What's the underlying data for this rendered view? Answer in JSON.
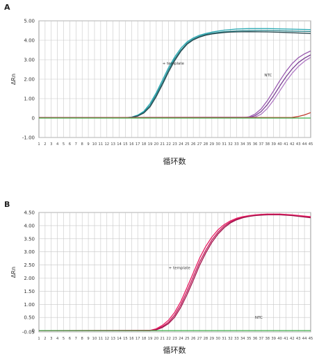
{
  "chart_data": [
    {
      "panel_label": "A",
      "type": "line",
      "ylabel": "ΔRn",
      "xlabel": "循环数",
      "ylim": [
        -1.0,
        5.0
      ],
      "yticks": [
        "5.00",
        "4.00",
        "3.00",
        "2.00",
        "1.00",
        "0",
        "-1.00"
      ],
      "ytick_values": [
        5,
        4,
        3,
        2,
        1,
        0,
        -1
      ],
      "xlim": [
        1,
        45
      ],
      "annotations": [
        {
          "text": "+ template",
          "x": 21,
          "y": 2.75
        },
        {
          "text": "NTC",
          "x": 37.5,
          "y": 2.15
        }
      ],
      "grid": true,
      "series": [
        {
          "color": "#2aa9b3",
          "x": [
            1,
            15,
            16,
            17,
            18,
            19,
            20,
            21,
            22,
            23,
            24,
            25,
            26,
            27,
            28,
            29,
            30,
            31,
            32,
            33,
            35,
            38,
            41,
            45
          ],
          "y": [
            0.02,
            0.02,
            0.05,
            0.15,
            0.35,
            0.75,
            1.3,
            1.95,
            2.6,
            3.15,
            3.6,
            3.92,
            4.12,
            4.26,
            4.35,
            4.42,
            4.47,
            4.52,
            4.55,
            4.58,
            4.6,
            4.6,
            4.58,
            4.55
          ]
        },
        {
          "color": "#1e7f86",
          "x": [
            1,
            15,
            16,
            17,
            18,
            19,
            20,
            21,
            22,
            23,
            24,
            25,
            26,
            27,
            28,
            29,
            30,
            31,
            32,
            33,
            35,
            38,
            41,
            45
          ],
          "y": [
            0.02,
            0.02,
            0.04,
            0.12,
            0.3,
            0.65,
            1.2,
            1.82,
            2.48,
            3.05,
            3.5,
            3.85,
            4.06,
            4.2,
            4.3,
            4.36,
            4.4,
            4.44,
            4.46,
            4.48,
            4.5,
            4.5,
            4.48,
            4.45
          ]
        },
        {
          "color": "#2b4a50",
          "x": [
            1,
            15,
            16,
            17,
            18,
            19,
            20,
            21,
            22,
            23,
            24,
            25,
            26,
            27,
            28,
            29,
            30,
            31,
            32,
            33,
            35,
            38,
            41,
            45
          ],
          "y": [
            0.02,
            0.02,
            0.04,
            0.1,
            0.26,
            0.58,
            1.1,
            1.72,
            2.38,
            2.96,
            3.44,
            3.8,
            4.02,
            4.16,
            4.26,
            4.32,
            4.36,
            4.4,
            4.42,
            4.43,
            4.44,
            4.43,
            4.4,
            4.35
          ]
        },
        {
          "color": "#9a5bb0",
          "x": [
            1,
            34,
            35,
            36,
            37,
            38,
            39,
            40,
            41,
            42,
            43,
            44,
            45
          ],
          "y": [
            0.02,
            0.02,
            0.06,
            0.2,
            0.48,
            0.9,
            1.4,
            1.92,
            2.4,
            2.8,
            3.1,
            3.3,
            3.45
          ]
        },
        {
          "color": "#7a3c94",
          "x": [
            1,
            35,
            36,
            37,
            38,
            39,
            40,
            41,
            42,
            43,
            44,
            45
          ],
          "y": [
            0.02,
            0.03,
            0.12,
            0.34,
            0.7,
            1.15,
            1.65,
            2.12,
            2.52,
            2.85,
            3.08,
            3.25
          ]
        },
        {
          "color": "#b07ac4",
          "x": [
            1,
            36,
            37,
            38,
            39,
            40,
            41,
            42,
            43,
            44,
            45
          ],
          "y": [
            0.02,
            0.05,
            0.2,
            0.5,
            0.92,
            1.4,
            1.88,
            2.3,
            2.65,
            2.92,
            3.12
          ]
        },
        {
          "color": "#c0392b",
          "x": [
            1,
            42,
            43,
            44,
            45
          ],
          "y": [
            0.02,
            0.03,
            0.08,
            0.16,
            0.28
          ]
        },
        {
          "color": "#3fae49",
          "x": [
            1,
            45
          ],
          "y": [
            0.0,
            0.0
          ]
        }
      ]
    },
    {
      "panel_label": "B",
      "type": "line",
      "ylabel": "ΔRn",
      "xlabel": "循环数",
      "ylim": [
        -0.05,
        4.5
      ],
      "yticks": [
        "4.50",
        "4.00",
        "3.50",
        "3.00",
        "2.50",
        "2.00",
        "1.50",
        "1.00",
        "0.50",
        "0",
        "-0.05"
      ],
      "ytick_values": [
        4.5,
        4.0,
        3.5,
        3.0,
        2.5,
        2.0,
        1.5,
        1.0,
        0.5,
        0.0,
        -0.05
      ],
      "xlim": [
        1,
        45
      ],
      "annotations": [
        {
          "text": "+ template",
          "x": 22,
          "y": 2.35
        },
        {
          "text": "NTC",
          "x": 36,
          "y": 0.45
        }
      ],
      "grid": true,
      "series": [
        {
          "color": "#c2185b",
          "x": [
            1,
            19,
            20,
            21,
            22,
            23,
            24,
            25,
            26,
            27,
            28,
            29,
            30,
            31,
            32,
            33,
            34,
            35,
            36,
            37,
            38,
            40,
            42,
            45
          ],
          "y": [
            0.0,
            0.0,
            0.05,
            0.15,
            0.32,
            0.6,
            1.0,
            1.5,
            2.05,
            2.6,
            3.05,
            3.45,
            3.75,
            3.98,
            4.14,
            4.25,
            4.32,
            4.37,
            4.4,
            4.42,
            4.43,
            4.43,
            4.4,
            4.32
          ]
        },
        {
          "color": "#e91e63",
          "x": [
            1,
            19,
            20,
            21,
            22,
            23,
            24,
            25,
            26,
            27,
            28,
            29,
            30,
            31,
            32,
            33,
            34,
            35,
            36,
            37,
            38,
            40,
            42,
            45
          ],
          "y": [
            0.0,
            0.01,
            0.07,
            0.2,
            0.4,
            0.7,
            1.12,
            1.65,
            2.2,
            2.75,
            3.2,
            3.56,
            3.84,
            4.04,
            4.18,
            4.28,
            4.34,
            4.38,
            4.41,
            4.43,
            4.44,
            4.44,
            4.41,
            4.34
          ]
        },
        {
          "color": "#a0134a",
          "x": [
            1,
            19,
            20,
            21,
            22,
            23,
            24,
            25,
            26,
            27,
            28,
            29,
            30,
            31,
            32,
            33,
            34,
            35,
            36,
            37,
            38,
            40,
            42,
            45
          ],
          "y": [
            0.0,
            0.0,
            0.03,
            0.12,
            0.27,
            0.52,
            0.9,
            1.38,
            1.92,
            2.48,
            2.95,
            3.36,
            3.68,
            3.92,
            4.1,
            4.22,
            4.3,
            4.35,
            4.38,
            4.4,
            4.41,
            4.41,
            4.38,
            4.3
          ]
        },
        {
          "color": "#3fae49",
          "x": [
            1,
            45
          ],
          "y": [
            0.0,
            0.0
          ]
        }
      ]
    }
  ]
}
